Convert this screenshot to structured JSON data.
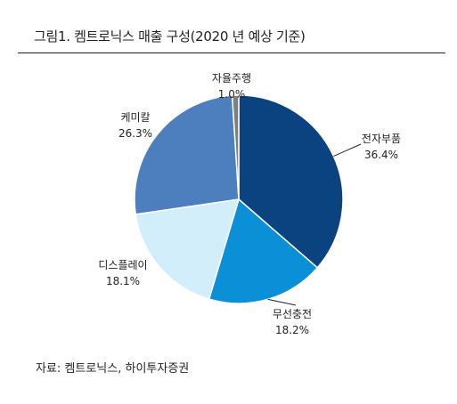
{
  "title": "그림1. 켐트로닉스 매출 구성(2020 년 예상 기준)",
  "source": "자료: 켐트로닉스, 하이투자증권",
  "chart_data": {
    "type": "pie",
    "unit": "%",
    "slices": [
      {
        "label": "전자부품",
        "value": 36.4,
        "value_label": "36.4%",
        "color": "#0b4280"
      },
      {
        "label": "무선충전",
        "value": 18.2,
        "value_label": "18.2%",
        "color": "#0b8fd6"
      },
      {
        "label": "디스플레이",
        "value": 18.1,
        "value_label": "18.1%",
        "color": "#d3eefb"
      },
      {
        "label": "케미칼",
        "value": 26.3,
        "value_label": "26.3%",
        "color": "#4d7ebd"
      },
      {
        "label": "자율주행",
        "value": 1.0,
        "value_label": "1.0%",
        "color": "#7f7f7f"
      }
    ],
    "start": "12 o'clock",
    "direction": "clockwise"
  }
}
